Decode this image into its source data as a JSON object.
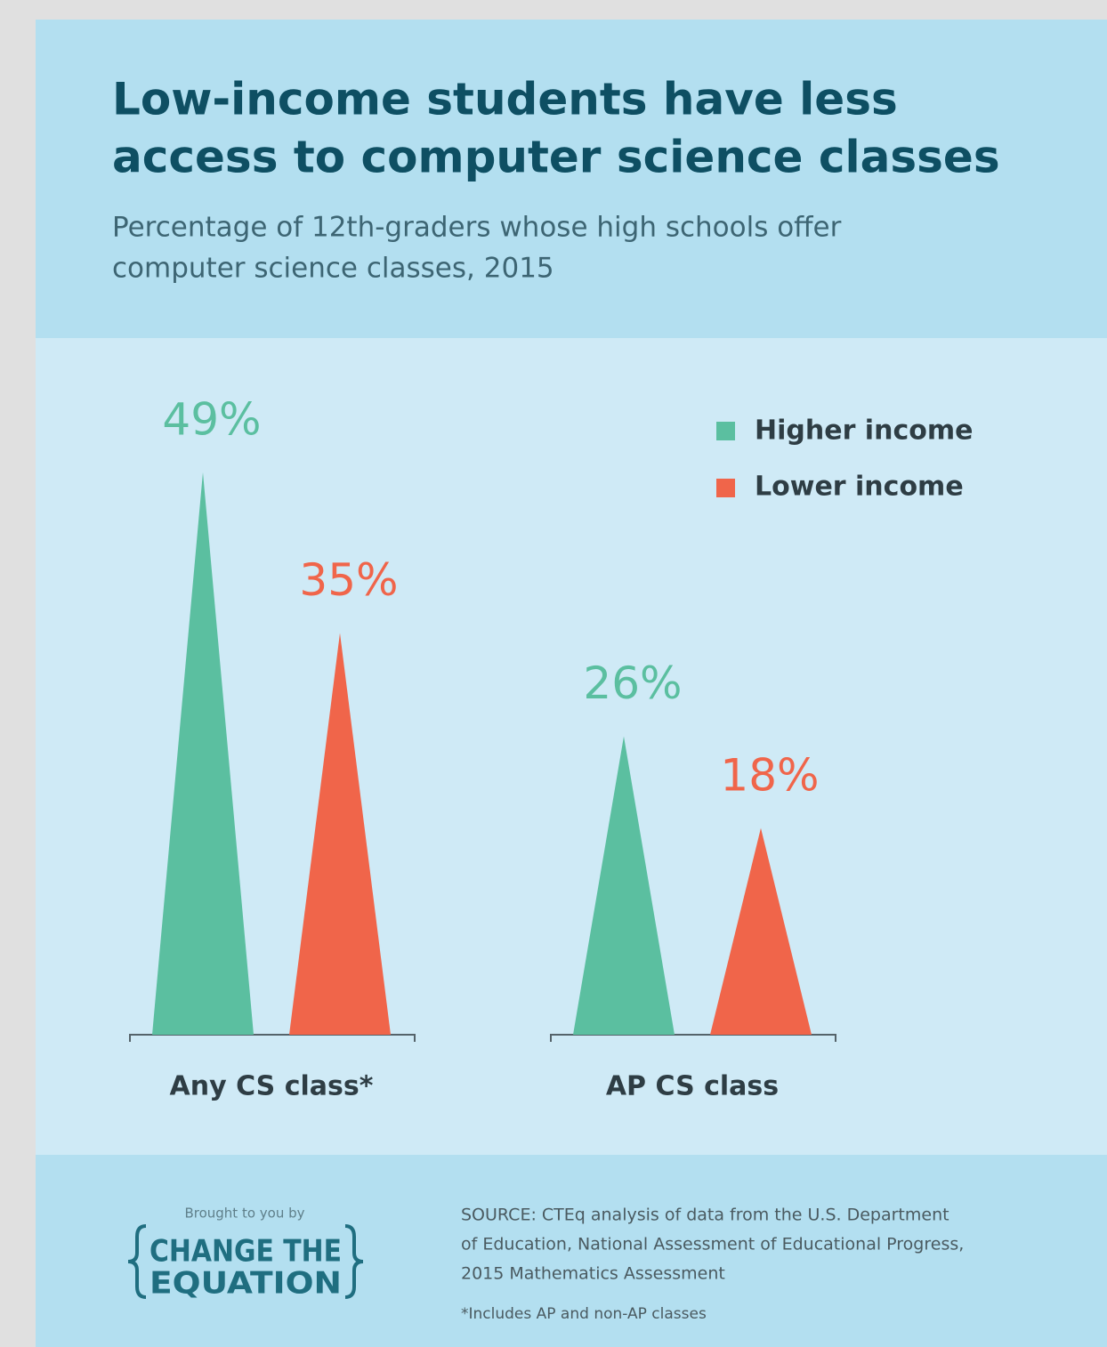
{
  "chart_data": {
    "type": "triangle-bar",
    "title": [
      "Low-income students have less",
      "access to computer science classes"
    ],
    "subtitle": [
      "Percentage of 12th-graders whose high schools offer",
      "computer science classes, 2015"
    ],
    "categories": [
      "Any CS class*",
      "AP CS class"
    ],
    "series": [
      {
        "name": "Higher income",
        "color": "#5bbfa0",
        "values": [
          49,
          26
        ],
        "value_labels": [
          "49%",
          "26%"
        ]
      },
      {
        "name": "Lower income",
        "color": "#f0654a",
        "values": [
          35,
          18
        ],
        "value_labels": [
          "35%",
          "18%"
        ]
      }
    ],
    "legend": "top-right"
  },
  "footer": {
    "credit": "Brought to you by",
    "logo": [
      "CHANGE THE",
      "EQUATION"
    ],
    "source": [
      "SOURCE: CTEq analysis of data from the U.S. Department",
      "of Education, National Assessment of Educational Progress,",
      "2015 Mathematics Assessment"
    ],
    "note": "*Includes AP and non-AP classes"
  }
}
